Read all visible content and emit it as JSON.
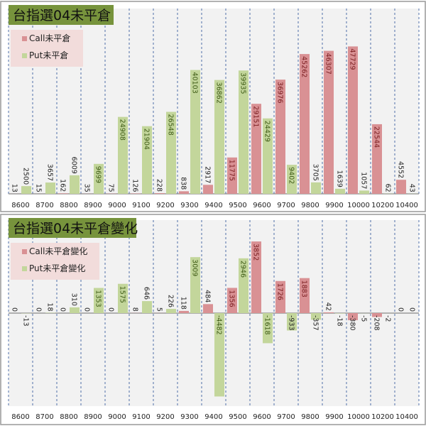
{
  "chart_data": [
    {
      "type": "bar",
      "title": "台指選04未平倉",
      "categories": [
        "8600",
        "8700",
        "8800",
        "8900",
        "9000",
        "9100",
        "9200",
        "9300",
        "9400",
        "9500",
        "9600",
        "9700",
        "9800",
        "9900",
        "10000",
        "10200",
        "10400"
      ],
      "series": [
        {
          "name": "Call未平倉",
          "color": "#d99194",
          "values": [
            13,
            15,
            162,
            35,
            75,
            126,
            228,
            838,
            2917,
            11775,
            29151,
            36976,
            45262,
            46307,
            47729,
            22544,
            4552
          ]
        },
        {
          "name": "Put未平倉",
          "color": "#c3d69b",
          "values": [
            2500,
            3657,
            6009,
            9699,
            24908,
            21904,
            26548,
            40103,
            36862,
            39935,
            24429,
            9402,
            3705,
            1639,
            1057,
            62,
            43
          ]
        }
      ],
      "ylim": [
        0,
        60000
      ],
      "grid": "vertical dashed separators between categories",
      "legend": "top-left"
    },
    {
      "type": "bar",
      "title": "台指選04未平倉變化",
      "categories": [
        "8600",
        "8700",
        "8800",
        "8900",
        "9000",
        "9100",
        "9200",
        "9300",
        "9400",
        "9500",
        "9600",
        "9700",
        "9800",
        "9900",
        "10000",
        "10200",
        "10400"
      ],
      "series": [
        {
          "name": "Call未平倉變化",
          "color": "#d99194",
          "values": [
            0,
            0,
            0,
            0,
            0,
            8,
            5,
            118,
            484,
            1356,
            3852,
            1726,
            1883,
            42,
            -380,
            -208,
            0
          ]
        },
        {
          "name": "Put未平倉變化",
          "color": "#c3d69b",
          "values": [
            -13,
            18,
            310,
            1353,
            1575,
            646,
            226,
            3009,
            -4482,
            2946,
            -1618,
            -933,
            -357,
            -18,
            -5,
            -2,
            0
          ]
        }
      ],
      "ylim": [
        -5000,
        5000
      ],
      "grid": "vertical dashed separators between categories",
      "legend": "top-left"
    }
  ],
  "colors": {
    "title_bg": "#77933c",
    "legend_bg": "#f2dcdb",
    "plot_bg": "#f2f2f2",
    "separator": "#4f6fa8"
  }
}
